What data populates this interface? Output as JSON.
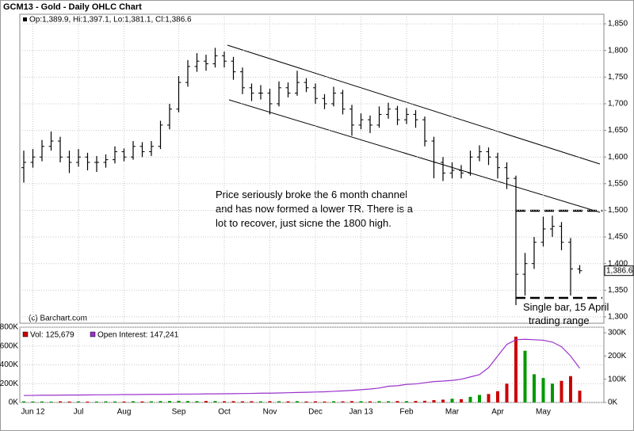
{
  "chart_data": [
    {
      "type": "ohlc",
      "title": "GCM13 - Gold - Daily OHLC Chart",
      "legend": "Op:1,389.9, Hi:1,397.1, Lo:1,381.1, Cl:1,386.6",
      "credit": "(c) Barchart.com",
      "annotations": [
        "Price seriously broke the 6 month channel",
        "and has now formed a lower TR.  There is a",
        "lot to recover, just sicne the 1800 high.",
        "Single bar, 15 April",
        "trading range"
      ],
      "last_label": "1,386.6",
      "color": "#000000",
      "grid": true,
      "categories": [
        null,
        "Jun 12",
        null,
        null,
        null,
        null,
        "Jul",
        null,
        null,
        null,
        null,
        "Aug",
        null,
        null,
        null,
        null,
        null,
        "Sep",
        null,
        null,
        null,
        null,
        "Oct",
        null,
        null,
        null,
        null,
        "Nov",
        null,
        null,
        null,
        null,
        "Dec",
        null,
        null,
        null,
        null,
        "Jan 13",
        null,
        null,
        null,
        null,
        "Feb",
        null,
        null,
        null,
        null,
        "Mar",
        null,
        null,
        null,
        null,
        "Apr",
        null,
        null,
        null,
        null,
        "May",
        null,
        null,
        null,
        null
      ],
      "open": [
        1580,
        1590,
        1600,
        1620,
        1630,
        1600,
        1590,
        1600,
        1590,
        1590,
        1595,
        1610,
        1600,
        1620,
        1610,
        1620,
        1660,
        1690,
        1740,
        1770,
        1780,
        1775,
        1790,
        1780,
        1760,
        1730,
        1720,
        1720,
        1700,
        1730,
        1720,
        1740,
        1730,
        1710,
        1700,
        1720,
        1690,
        1660,
        1670,
        1660,
        1680,
        1690,
        1670,
        1680,
        1670,
        1630,
        1590,
        1570,
        1575,
        1570,
        1600,
        1610,
        1600,
        1580,
        1560,
        1380,
        1400,
        1440,
        1465,
        1470,
        1440,
        1389.9
      ],
      "high": [
        1612,
        1615,
        1632,
        1648,
        1638,
        1612,
        1615,
        1608,
        1602,
        1605,
        1620,
        1616,
        1630,
        1628,
        1630,
        1668,
        1700,
        1752,
        1782,
        1795,
        1792,
        1805,
        1798,
        1788,
        1768,
        1738,
        1735,
        1728,
        1742,
        1740,
        1762,
        1748,
        1738,
        1718,
        1732,
        1726,
        1698,
        1682,
        1678,
        1695,
        1702,
        1696,
        1692,
        1688,
        1676,
        1638,
        1600,
        1590,
        1585,
        1612,
        1622,
        1618,
        1608,
        1590,
        1565,
        1420,
        1450,
        1488,
        1490,
        1478,
        1448,
        1397.1
      ],
      "low": [
        1552,
        1580,
        1592,
        1612,
        1590,
        1570,
        1582,
        1575,
        1572,
        1580,
        1588,
        1592,
        1595,
        1600,
        1602,
        1615,
        1652,
        1684,
        1732,
        1760,
        1762,
        1768,
        1768,
        1745,
        1718,
        1705,
        1708,
        1680,
        1695,
        1712,
        1715,
        1722,
        1700,
        1690,
        1695,
        1680,
        1640,
        1652,
        1645,
        1655,
        1672,
        1660,
        1662,
        1655,
        1620,
        1560,
        1555,
        1560,
        1560,
        1565,
        1592,
        1585,
        1560,
        1540,
        1322,
        1340,
        1390,
        1432,
        1450,
        1425,
        1340,
        1381.1
      ],
      "close": [
        1590,
        1600,
        1620,
        1630,
        1600,
        1590,
        1600,
        1590,
        1590,
        1595,
        1610,
        1600,
        1620,
        1610,
        1620,
        1660,
        1690,
        1740,
        1770,
        1780,
        1775,
        1790,
        1780,
        1760,
        1730,
        1720,
        1720,
        1700,
        1730,
        1720,
        1740,
        1730,
        1710,
        1700,
        1720,
        1690,
        1660,
        1670,
        1660,
        1680,
        1690,
        1670,
        1680,
        1670,
        1630,
        1590,
        1570,
        1575,
        1570,
        1600,
        1610,
        1600,
        1580,
        1560,
        1380,
        1400,
        1440,
        1465,
        1470,
        1440,
        1390,
        1386.6
      ],
      "ylim": [
        1288,
        1868
      ],
      "yticks": [
        {
          "value": 1300,
          "label": "1,300"
        },
        {
          "value": 1350,
          "label": "1,350"
        },
        {
          "value": 1400,
          "label": "1,400"
        },
        {
          "value": 1450,
          "label": "1,450"
        },
        {
          "value": 1500,
          "label": "1,500"
        },
        {
          "value": 1550,
          "label": "1,550"
        },
        {
          "value": 1600,
          "label": "1,600"
        },
        {
          "value": 1650,
          "label": "1,650"
        },
        {
          "value": 1700,
          "label": "1,700"
        },
        {
          "value": 1750,
          "label": "1,750"
        },
        {
          "value": 1800,
          "label": "1,800"
        },
        {
          "value": 1850,
          "label": "1,850"
        }
      ]
    },
    {
      "type": "volume",
      "up_color": "#009900",
      "down_color": "#cc0000",
      "grid": true,
      "series": [
        {
          "name": "Vol: 125,679",
          "color": "#cc0000",
          "values": [
            12000,
            10000,
            11000,
            9000,
            12000,
            10000,
            11000,
            9000,
            10000,
            12000,
            11000,
            10000,
            13000,
            11000,
            12000,
            15000,
            16000,
            18000,
            15000,
            14000,
            16000,
            15000,
            13000,
            14000,
            12000,
            13000,
            12000,
            14000,
            13000,
            12000,
            14000,
            11000,
            12000,
            10000,
            13000,
            12000,
            14000,
            13000,
            12000,
            14000,
            13000,
            15000,
            14000,
            16000,
            18000,
            25000,
            30000,
            40000,
            35000,
            60000,
            80000,
            90000,
            120000,
            200000,
            700000,
            550000,
            300000,
            260000,
            200000,
            230000,
            280000,
            125679
          ]
        },
        {
          "name": "Open Interest: 147,241",
          "color": "#9933cc",
          "axis": "y2",
          "values": [
            30000,
            30500,
            31000,
            31000,
            31500,
            32000,
            32000,
            32500,
            33000,
            33000,
            33500,
            34000,
            34000,
            34500,
            35000,
            35000,
            35500,
            36000,
            36000,
            36500,
            37000,
            37000,
            37500,
            38000,
            38500,
            39000,
            40000,
            40000,
            41000,
            42000,
            43000,
            44000,
            45000,
            46000,
            48000,
            50000,
            52000,
            55000,
            58000,
            62000,
            70000,
            72000,
            78000,
            80000,
            85000,
            90000,
            92000,
            95000,
            100000,
            110000,
            120000,
            150000,
            200000,
            250000,
            270000,
            272000,
            270000,
            268000,
            260000,
            240000,
            200000,
            147241
          ]
        }
      ],
      "ylim": [
        0,
        800000
      ],
      "yticks": [
        {
          "value": 0,
          "label": "0K"
        },
        {
          "value": 200000,
          "label": "200K"
        },
        {
          "value": 400000,
          "label": "400K"
        },
        {
          "value": 600000,
          "label": "600K"
        },
        {
          "value": 800000,
          "label": "800K"
        }
      ],
      "y2lim": [
        0,
        324000
      ],
      "y2ticks": [
        {
          "value": 0,
          "label": "0K"
        },
        {
          "value": 100000,
          "label": "100K"
        },
        {
          "value": 200000,
          "label": "200K"
        },
        {
          "value": 300000,
          "label": "300K"
        }
      ]
    }
  ]
}
